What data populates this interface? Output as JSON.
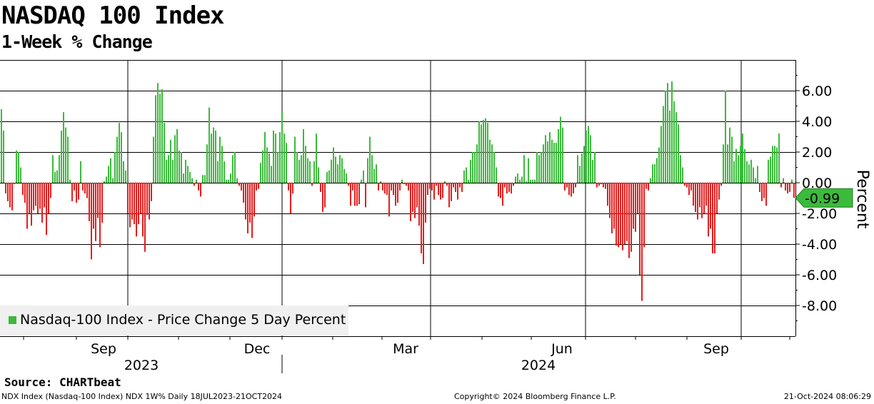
{
  "header": {
    "title": "NASDAQ 100 Index",
    "subtitle": "1-Week % Change"
  },
  "source": "Source: CHARTbeat",
  "footer": {
    "left": "NDX Index (Nasdaq-100 Index) NDX 1W%  Daily 18JUL2023-21OCT2024",
    "middle": "Copyright© 2024 Bloomberg Finance L.P.",
    "right": "21-Oct-2024 08:06:29"
  },
  "colors": {
    "positive": "#3cba3c",
    "negative": "#e41e1e",
    "callout": "#3cba3c"
  },
  "chart_data": {
    "type": "bar",
    "title": "NASDAQ 100 Index",
    "subtitle": "1-Week % Change",
    "ylabel": "Percent",
    "ylim": [
      -10,
      8
    ],
    "yticks": [
      6,
      4,
      2,
      0,
      -2,
      -4,
      -6,
      -8
    ],
    "ytick_labels": [
      "6.00",
      "4.00",
      "2.00",
      "0.00",
      "-2.00",
      "-4.00",
      "-6.00",
      "-8.00"
    ],
    "x_tick_labels": [
      "Sep",
      "Dec",
      "Mar",
      "Jun",
      "Sep"
    ],
    "year_labels": [
      "2023",
      "2024"
    ],
    "legend": {
      "label": "Nasdaq-100 Index - Price Change 5 Day Percent",
      "position": "bottom-left"
    },
    "last_value": -0.99,
    "last_value_label": "-0.99",
    "series": [
      {
        "name": "Nasdaq-100 Index - Price Change 5 Day Percent",
        "values": [
          4.8,
          3.4,
          -0.7,
          -1.2,
          -1.6,
          -1.8,
          -0.1,
          2.1,
          2.0,
          1.0,
          -0.8,
          -1.3,
          -3.0,
          -2.0,
          -2.8,
          -1.8,
          -1.5,
          -2.0,
          -1.7,
          -2.6,
          -1.6,
          -3.4,
          -2.0,
          -1.0,
          1.8,
          0.7,
          0.8,
          1.8,
          3.4,
          4.6,
          3.6,
          3.0,
          0.2,
          -1.2,
          -0.5,
          -1.3,
          -1.1,
          1.4,
          -0.5,
          -0.7,
          -1.0,
          -2.5,
          -5.0,
          -3.0,
          -3.8,
          -2.3,
          -4.2,
          -2.6,
          0.1,
          0.4,
          1.1,
          1.6,
          0.3,
          2.0,
          3.0,
          3.9,
          3.3,
          1.4,
          0.8,
          -2.0,
          -2.9,
          -2.4,
          -2.7,
          -3.5,
          -2.7,
          -2.0,
          -3.5,
          -4.5,
          -2.1,
          -2.4,
          -1.2,
          3.0,
          5.7,
          6.5,
          5.8,
          6.1,
          3.9,
          1.5,
          1.8,
          2.8,
          1.5,
          3.1,
          3.5,
          2.1,
          2.0,
          0.6,
          1.5,
          1.1,
          0.7,
          0.3,
          -0.2,
          0.2,
          -0.5,
          -0.9,
          0.5,
          0.5,
          2.5,
          4.9,
          3.2,
          3.6,
          3.4,
          1.4,
          3.0,
          2.4,
          1.4,
          0.2,
          0.2,
          0.6,
          1.8,
          2.0,
          0.3,
          -0.2,
          -0.5,
          -1.3,
          -2.4,
          -3.3,
          -2.6,
          -3.6,
          -2.2,
          -0.5,
          -0.4,
          1.3,
          2.1,
          3.3,
          2.3,
          1.9,
          1.1,
          3.4,
          3.2,
          2.0,
          3.3,
          4.6,
          3.2,
          2.6,
          -0.5,
          -2.0,
          -0.7,
          3.0,
          2.0,
          1.5,
          1.8,
          3.5,
          2.4,
          1.6,
          1.4,
          -0.2,
          1.4,
          3.2,
          1.0,
          -0.6,
          -1.9,
          -1.6,
          0.7,
          0.8,
          1.5,
          2.3,
          1.7,
          1.2,
          1.8,
          1.6,
          0.9,
          0.6,
          -0.2,
          -1.5,
          -0.5,
          -1.5,
          -1.5,
          -1.4,
          0.2,
          0.8,
          -1.6,
          1.6,
          3.0,
          1.8,
          0.9,
          1.2,
          -0.5,
          0.1,
          -0.5,
          -0.7,
          -0.8,
          -2.2,
          -0.5,
          -0.8,
          -1.5,
          -1.3,
          -0.5,
          0.2,
          -0.1,
          -0.2,
          -0.5,
          -2.5,
          -1.9,
          -2.3,
          -1.6,
          -2.8,
          -4.6,
          -5.3,
          -2.6,
          -0.8,
          -0.4,
          -0.5,
          -1.1,
          -0.2,
          -0.8,
          -1.1,
          -1.0,
          0.1,
          -0.2,
          -1.6,
          -1.2,
          -0.3,
          -0.6,
          -1.1,
          -0.3,
          -0.6,
          0.8,
          1.0,
          0.2,
          1.5,
          2.0,
          2.0,
          2.5,
          4.0,
          3.8,
          4.1,
          4.2,
          3.9,
          2.8,
          2.5,
          2.0,
          1.0,
          -0.9,
          -1.0,
          -1.5,
          -0.3,
          -0.7,
          -0.6,
          -0.7,
          -0.2,
          0.4,
          0.6,
          0.2,
          0.4,
          1.8,
          0.1,
          1.6,
          0.2,
          0.2,
          0.2,
          2.0,
          1.8,
          2.0,
          2.5,
          3.1,
          2.7,
          3.3,
          2.8,
          2.6,
          2.6,
          3.5,
          4.3,
          3.6,
          -0.5,
          -0.3,
          -0.8,
          -0.9,
          -0.7,
          -0.3,
          1.8,
          1.1,
          1.9,
          2.4,
          3.4,
          3.7,
          3.1,
          1.5,
          2.0,
          -0.3,
          -0.2,
          -0.1,
          -0.3,
          -0.4,
          -1.5,
          -2.3,
          -3.3,
          -3.0,
          -4.1,
          -4.2,
          -4.0,
          -4.4,
          -4.0,
          -3.8,
          -4.9,
          -4.5,
          -3.0,
          -3.2,
          -2.0,
          -6.0,
          -7.7,
          -4.2,
          -0.4,
          -0.5,
          0.3,
          1.2,
          1.2,
          1.6,
          2.3,
          3.7,
          5.0,
          6.0,
          6.5,
          4.7,
          6.6,
          5.3,
          4.6,
          3.8,
          1.8,
          1.0,
          -0.2,
          -0.3,
          -0.8,
          -0.5,
          -1.5,
          -1.9,
          -2.4,
          -1.6,
          -2.3,
          -2.0,
          -1.5,
          -3.5,
          -3.0,
          -4.6,
          -4.6,
          -2.0,
          -1.1,
          -0.2,
          2.5,
          6.0,
          2.5,
          3.6,
          3.0,
          1.4,
          2.2,
          1.8,
          2.4,
          3.2,
          2.2,
          1.4,
          1.2,
          1.5,
          1.0,
          0.3,
          1.1,
          -0.6,
          -1.2,
          -1.0,
          -1.5,
          1.5,
          1.7,
          2.4,
          2.4,
          2.3,
          3.2,
          -0.3,
          0.3,
          -0.5,
          -0.7,
          -0.6,
          0.2,
          -0.99
        ]
      }
    ]
  }
}
